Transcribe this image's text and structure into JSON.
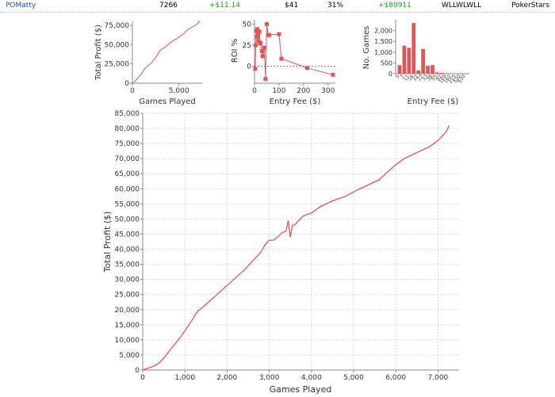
{
  "row": {
    "player": "POMatty",
    "games": "7266",
    "avg_profit": "+$11.14",
    "avg_stake": "$41",
    "avg_roi": "31%",
    "total_profit": "+$80911",
    "last10": "WLLWLWLL",
    "network": "PokerStars"
  },
  "colors": {
    "series": "#e05555",
    "grid": "#d6d6d6",
    "player": "#1a55a3",
    "positive": "#1e9a1e"
  },
  "chart_data": [
    {
      "type": "line",
      "xlabel": "Games Played",
      "ylabel": "Total Profit ($)",
      "xlim": [
        0,
        7500
      ],
      "ylim": [
        0,
        80000
      ],
      "x_ticks": [
        0,
        5000
      ],
      "x_tick_labels": [
        "0",
        "5,000"
      ],
      "y_ticks": [
        0,
        25000,
        50000,
        75000
      ],
      "y_tick_labels": [
        "0",
        "25,000",
        "50,000",
        "75,000"
      ],
      "x": [
        0,
        200,
        500,
        1000,
        1400,
        2000,
        2500,
        3000,
        3500,
        4000,
        4500,
        5000,
        5500,
        6000,
        6500,
        7000,
        7266
      ],
      "values": [
        0,
        1500,
        5500,
        12500,
        20000,
        26000,
        33000,
        43000,
        46500,
        52000,
        56000,
        59500,
        64000,
        70000,
        73000,
        77000,
        81000
      ]
    },
    {
      "type": "scatter",
      "xlabel": "Entry Fee ($)",
      "ylabel": "ROI %",
      "xlim": [
        0,
        330
      ],
      "ylim": [
        -20,
        55
      ],
      "x_ticks": [
        0,
        100,
        200,
        300
      ],
      "x_tick_labels": [
        "0",
        "100",
        "200",
        "300"
      ],
      "y_ticks": [
        0,
        25,
        50
      ],
      "y_tick_labels": [
        "0",
        "25",
        "50"
      ],
      "reference_line": 0,
      "x": [
        3,
        5,
        7,
        10,
        12,
        15,
        16,
        20,
        22,
        25,
        30,
        33,
        40,
        45,
        50,
        55,
        60,
        100,
        110,
        215,
        320
      ],
      "values": [
        -3,
        25,
        42,
        35,
        44,
        38,
        30,
        41,
        28,
        27,
        18,
        12,
        22,
        -15,
        50,
        37,
        37,
        38,
        9,
        -2,
        -10
      ]
    },
    {
      "type": "bar",
      "xlabel": "Entry Fee ($)",
      "ylabel": "No. Games",
      "ylim": [
        0,
        2500
      ],
      "y_ticks": [
        0,
        500,
        1000,
        1500,
        2000
      ],
      "y_tick_labels": [
        "0",
        "500",
        "1,000",
        "1,500",
        "2,000"
      ],
      "categories": [
        "5",
        "7",
        "11",
        "16",
        "22",
        "27",
        "33",
        "38",
        "55",
        "82",
        "109",
        "162",
        "215",
        "320",
        "530"
      ],
      "values": [
        400,
        1300,
        1200,
        2350,
        150,
        1150,
        370,
        400,
        60,
        40,
        20,
        15,
        10,
        5,
        5
      ]
    },
    {
      "type": "line",
      "xlabel": "Games Played",
      "ylabel": "Total Profit ($)",
      "xlim": [
        0,
        7500
      ],
      "ylim": [
        0,
        85000
      ],
      "x_ticks": [
        0,
        1000,
        2000,
        3000,
        4000,
        5000,
        6000,
        7000
      ],
      "x_tick_labels": [
        "0",
        "1,000",
        "2,000",
        "3,000",
        "4,000",
        "5,000",
        "6,000",
        "7,000"
      ],
      "y_ticks": [
        0,
        5000,
        10000,
        15000,
        20000,
        25000,
        30000,
        35000,
        40000,
        45000,
        50000,
        55000,
        60000,
        65000,
        70000,
        75000,
        80000,
        85000
      ],
      "y_tick_labels": [
        "0",
        "5,000",
        "10,000",
        "15,000",
        "20,000",
        "25,000",
        "30,000",
        "35,000",
        "40,000",
        "45,000",
        "50,000",
        "55,000",
        "60,000",
        "65,000",
        "70,000",
        "75,000",
        "80,000",
        "85,000"
      ],
      "grid": true,
      "x": [
        0,
        100,
        200,
        300,
        400,
        500,
        700,
        900,
        1100,
        1300,
        1400,
        1600,
        1800,
        2000,
        2200,
        2400,
        2600,
        2800,
        2900,
        3000,
        3100,
        3200,
        3300,
        3400,
        3450,
        3500,
        3550,
        3600,
        3800,
        4000,
        4200,
        4500,
        4800,
        5000,
        5300,
        5600,
        5800,
        6000,
        6200,
        6500,
        6800,
        7000,
        7200,
        7266
      ],
      "values": [
        0,
        500,
        1000,
        1500,
        2500,
        4000,
        7500,
        11000,
        15000,
        19500,
        20500,
        23000,
        25500,
        28000,
        30500,
        33000,
        36000,
        39000,
        41500,
        43000,
        43000,
        44000,
        45500,
        46000,
        49500,
        44000,
        48000,
        48000,
        51000,
        52000,
        54000,
        56000,
        57500,
        59000,
        61000,
        63000,
        65500,
        68000,
        70000,
        72000,
        74000,
        76000,
        79000,
        81000
      ]
    }
  ]
}
